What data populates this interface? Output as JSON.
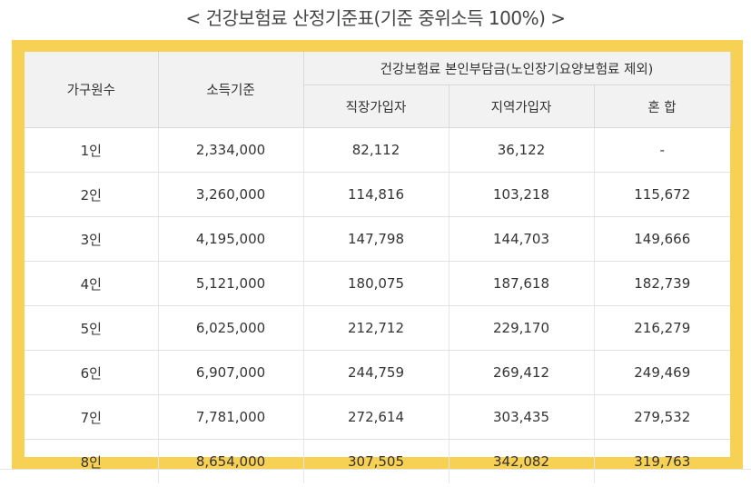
{
  "title": "< 건강보험료 산정기준표(기준 중위소득 100%) >",
  "table": {
    "headers": {
      "household": "가구원수",
      "income": "소득기준",
      "group": "건강보험료 본인부담금(노인장기요양보험료 제외)",
      "employee": "직장가입자",
      "regional": "지역가입자",
      "mixed": "혼 합"
    },
    "rows": [
      [
        "1인",
        "2,334,000",
        "82,112",
        "36,122",
        "-"
      ],
      [
        "2인",
        "3,260,000",
        "114,816",
        "103,218",
        "115,672"
      ],
      [
        "3인",
        "4,195,000",
        "147,798",
        "144,703",
        "149,666"
      ],
      [
        "4인",
        "5,121,000",
        "180,075",
        "187,618",
        "182,739"
      ],
      [
        "5인",
        "6,025,000",
        "212,712",
        "229,170",
        "216,279"
      ],
      [
        "6인",
        "6,907,000",
        "244,759",
        "269,412",
        "249,469"
      ],
      [
        "7인",
        "7,781,000",
        "272,614",
        "303,435",
        "279,532"
      ],
      [
        "8인",
        "8,654,000",
        "307,505",
        "342,082",
        "319,763"
      ]
    ]
  },
  "colors": {
    "frame": "#f7d154",
    "header_bg": "#f2f2f2"
  }
}
